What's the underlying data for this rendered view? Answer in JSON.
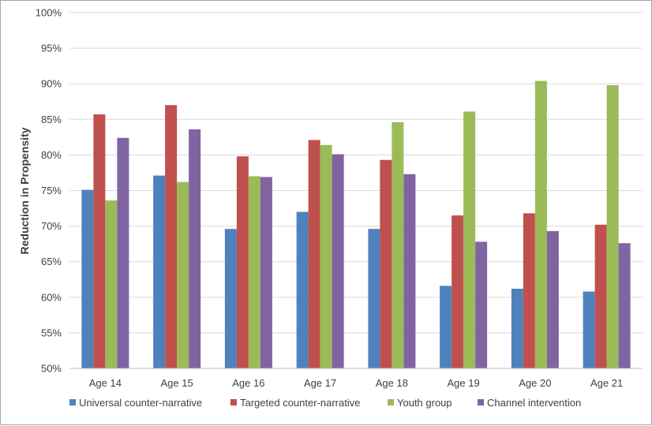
{
  "chart_data": {
    "type": "bar",
    "title": "",
    "xlabel": "",
    "ylabel": "Reduction in Propensity",
    "ylim": [
      50,
      100
    ],
    "yticks": [
      "50%",
      "55%",
      "60%",
      "65%",
      "70%",
      "75%",
      "80%",
      "85%",
      "90%",
      "95%",
      "100%"
    ],
    "grid": true,
    "legend_position": "bottom",
    "categories": [
      "Age 14",
      "Age 15",
      "Age 16",
      "Age 17",
      "Age 18",
      "Age 19",
      "Age 20",
      "Age 21"
    ],
    "series": [
      {
        "name": "Universal counter-narrative",
        "color": "#4f81bd",
        "values": [
          75.1,
          77.1,
          69.6,
          72.0,
          69.6,
          61.6,
          61.2,
          60.8
        ]
      },
      {
        "name": "Targeted counter-narrative",
        "color": "#c0504d",
        "values": [
          85.7,
          87.0,
          79.8,
          82.1,
          79.3,
          71.5,
          71.8,
          70.2
        ]
      },
      {
        "name": "Youth group",
        "color": "#9bbb59",
        "values": [
          73.6,
          76.2,
          77.0,
          81.4,
          84.6,
          86.1,
          90.4,
          89.8
        ]
      },
      {
        "name": "Channel intervention",
        "color": "#8064a2",
        "values": [
          82.4,
          83.6,
          76.9,
          80.1,
          77.3,
          67.8,
          69.3,
          67.6
        ]
      }
    ]
  }
}
